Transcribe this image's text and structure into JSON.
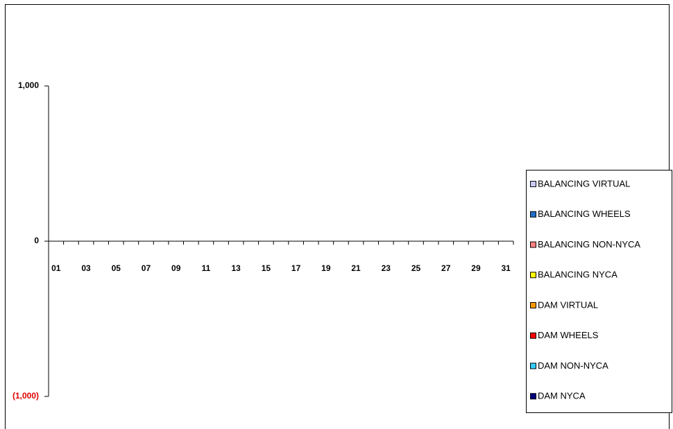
{
  "chart_data": {
    "type": "bar",
    "stacked": true,
    "categories": [
      "01",
      null,
      "03",
      null,
      "05",
      null,
      "07",
      null,
      "09",
      null,
      "11",
      null,
      "13",
      null,
      "15",
      null,
      "17",
      null,
      "19",
      null,
      "21",
      null,
      "23",
      null,
      "25",
      null,
      "27",
      null,
      "29",
      null,
      "31"
    ],
    "series": [
      {
        "name": "BALANCING VIRTUAL",
        "color": "#ccccff",
        "values": [
          null,
          null,
          null,
          null,
          null,
          null,
          null,
          null,
          null,
          null,
          null,
          null,
          null,
          null,
          null,
          null,
          null,
          null,
          null,
          null,
          null,
          null,
          null,
          null,
          null,
          null,
          null,
          null,
          null,
          null,
          null
        ]
      },
      {
        "name": "BALANCING WHEELS",
        "color": "#1f6fc5",
        "values": [
          null,
          null,
          null,
          null,
          null,
          null,
          null,
          null,
          null,
          null,
          null,
          null,
          null,
          null,
          null,
          null,
          null,
          null,
          null,
          null,
          null,
          null,
          null,
          null,
          null,
          null,
          null,
          null,
          null,
          null,
          null
        ]
      },
      {
        "name": "BALANCING NON-NYCA",
        "color": "#ff8080",
        "values": [
          null,
          null,
          null,
          null,
          null,
          null,
          null,
          null,
          null,
          null,
          null,
          null,
          null,
          null,
          null,
          null,
          null,
          null,
          null,
          null,
          null,
          null,
          null,
          null,
          null,
          null,
          null,
          null,
          null,
          null,
          null
        ]
      },
      {
        "name": "BALANCING NYCA",
        "color": "#ffff00",
        "values": [
          null,
          null,
          null,
          null,
          null,
          null,
          null,
          null,
          null,
          null,
          null,
          null,
          null,
          null,
          null,
          null,
          null,
          null,
          null,
          null,
          null,
          null,
          null,
          null,
          null,
          null,
          null,
          null,
          null,
          null,
          null
        ]
      },
      {
        "name": "DAM VIRTUAL",
        "color": "#ff9900",
        "values": [
          null,
          null,
          null,
          null,
          null,
          null,
          null,
          null,
          null,
          null,
          null,
          null,
          null,
          null,
          null,
          null,
          null,
          null,
          null,
          null,
          null,
          null,
          null,
          null,
          null,
          null,
          null,
          null,
          null,
          null,
          null
        ]
      },
      {
        "name": "DAM WHEELS",
        "color": "#ff0000",
        "values": [
          null,
          null,
          null,
          null,
          null,
          null,
          null,
          null,
          null,
          null,
          null,
          null,
          null,
          null,
          null,
          null,
          null,
          null,
          null,
          null,
          null,
          null,
          null,
          null,
          null,
          null,
          null,
          null,
          null,
          null,
          null
        ]
      },
      {
        "name": "DAM NON-NYCA",
        "color": "#33ccff",
        "values": [
          null,
          null,
          null,
          null,
          null,
          null,
          null,
          null,
          null,
          null,
          null,
          null,
          null,
          null,
          null,
          null,
          null,
          null,
          null,
          null,
          null,
          null,
          null,
          null,
          null,
          null,
          null,
          null,
          null,
          null,
          null
        ]
      },
      {
        "name": "DAM NYCA",
        "color": "#000080",
        "values": [
          null,
          null,
          null,
          null,
          null,
          null,
          null,
          null,
          null,
          null,
          null,
          null,
          null,
          null,
          null,
          null,
          null,
          null,
          null,
          null,
          null,
          null,
          null,
          null,
          null,
          null,
          null,
          null,
          null,
          null,
          null
        ]
      }
    ],
    "ylim": [
      -1000,
      1000
    ],
    "yticks": [
      {
        "value": 1000,
        "label": "1,000"
      },
      0,
      {
        "value": -1000,
        "label": "(1,000)"
      }
    ],
    "legend": "right"
  }
}
